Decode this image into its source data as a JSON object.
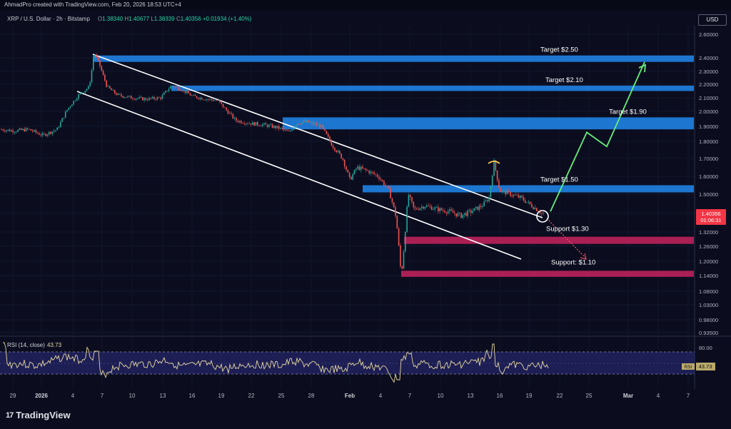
{
  "header": {
    "attribution": "AhmadPro created with TradingView.com, Feb 20, 2026 18:53 UTC+4"
  },
  "symbol": {
    "title": "XRP / U.S. Dollar · 2h · Bitstamp",
    "o_label": "O",
    "o": "1.38340",
    "h_label": "H",
    "h": "1.40677",
    "l_label": "L",
    "l": "1.38339",
    "c_label": "C",
    "c": "1.40356",
    "change": "+0.01934 (+1.40%)"
  },
  "currency_button": "USD",
  "rsi": {
    "label": "RSI (14, close)",
    "value": "43.73",
    "tag_label": "RSI",
    "tag_value": "43.73"
  },
  "price_tag": {
    "price": "1.40356",
    "countdown": "01:06:31"
  },
  "logo": {
    "mark": "17",
    "text": "TradingView"
  },
  "colors": {
    "resistance": "#1f7fe0",
    "support": "#b8225a",
    "trend": "#ffffff",
    "arrow": "#66ee7a",
    "rsi_line": "#e6d9a0",
    "rsi_band": "#2e2d80"
  },
  "chart_data": {
    "type": "candlestick",
    "y_ticks": [
      "2.60000",
      "2.40000",
      "2.30000",
      "2.20000",
      "2.10000",
      "2.00000",
      "1.90000",
      "1.80000",
      "1.70000",
      "1.60000",
      "1.50000",
      "1.40000",
      "1.32000",
      "1.26000",
      "1.20000",
      "1.14000",
      "1.08000",
      "1.03000",
      "0.98000",
      "0.93500"
    ],
    "rsi_ticks": [
      "80.00"
    ],
    "x_ticks": [
      "29",
      "2026",
      "4",
      "7",
      "10",
      "13",
      "16",
      "19",
      "22",
      "25",
      "28",
      "Feb",
      "4",
      "7",
      "10",
      "13",
      "16",
      "19",
      "22",
      "25",
      "Mar",
      "4",
      "7"
    ],
    "price_path": [
      [
        0,
        1.88
      ],
      [
        20,
        1.87
      ],
      [
        40,
        1.88
      ],
      [
        60,
        1.84
      ],
      [
        80,
        1.88
      ],
      [
        95,
        2.02
      ],
      [
        110,
        2.12
      ],
      [
        125,
        2.18
      ],
      [
        132,
        2.44
      ],
      [
        140,
        2.34
      ],
      [
        150,
        2.18
      ],
      [
        165,
        2.12
      ],
      [
        185,
        2.1
      ],
      [
        205,
        2.09
      ],
      [
        225,
        2.1
      ],
      [
        240,
        2.19
      ],
      [
        255,
        2.16
      ],
      [
        270,
        2.11
      ],
      [
        290,
        2.09
      ],
      [
        305,
        2.08
      ],
      [
        315,
        2.02
      ],
      [
        330,
        1.94
      ],
      [
        350,
        1.92
      ],
      [
        370,
        1.91
      ],
      [
        390,
        1.89
      ],
      [
        405,
        1.86
      ],
      [
        415,
        1.92
      ],
      [
        430,
        1.93
      ],
      [
        450,
        1.9
      ],
      [
        465,
        1.78
      ],
      [
        480,
        1.7
      ],
      [
        490,
        1.58
      ],
      [
        500,
        1.65
      ],
      [
        515,
        1.63
      ],
      [
        530,
        1.6
      ],
      [
        545,
        1.52
      ],
      [
        555,
        1.38
      ],
      [
        562,
        1.14
      ],
      [
        566,
        1.26
      ],
      [
        572,
        1.5
      ],
      [
        580,
        1.42
      ],
      [
        595,
        1.44
      ],
      [
        615,
        1.42
      ],
      [
        630,
        1.41
      ],
      [
        645,
        1.39
      ],
      [
        660,
        1.41
      ],
      [
        675,
        1.44
      ],
      [
        685,
        1.48
      ],
      [
        692,
        1.68
      ],
      [
        700,
        1.52
      ],
      [
        715,
        1.5
      ],
      [
        730,
        1.48
      ],
      [
        745,
        1.44
      ],
      [
        760,
        1.4
      ]
    ],
    "zones": [
      {
        "kind": "resistance",
        "label": "Target $2.50",
        "low": 2.37,
        "high": 2.42
      },
      {
        "kind": "resistance",
        "label": "Target $2.10",
        "low": 2.15,
        "high": 2.19
      },
      {
        "kind": "resistance",
        "label": "Target $1.90",
        "low": 1.88,
        "high": 1.96
      },
      {
        "kind": "resistance",
        "label": "Target $1.50",
        "low": 1.51,
        "high": 1.55
      },
      {
        "kind": "support",
        "label": "Support $1.30",
        "low": 1.27,
        "high": 1.3
      },
      {
        "kind": "support",
        "label": "Support: $1.10",
        "low": 1.135,
        "high": 1.16
      }
    ],
    "projection": [
      [
        1.41,
        1.86,
        1.77,
        2.37
      ]
    ],
    "rsi_range": [
      20,
      80
    ]
  }
}
